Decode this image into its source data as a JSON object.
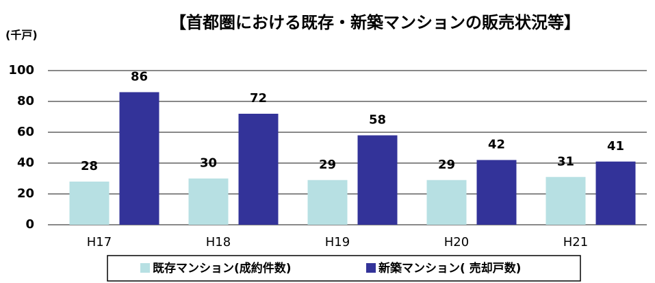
{
  "chart_data": {
    "type": "bar",
    "title": "【首都圏における既存・新築マンションの販売状況等】",
    "y_label": "(千戸)",
    "categories": [
      "H17",
      "H18",
      "H19",
      "H20",
      "H21"
    ],
    "series": [
      {
        "name": "既存マンション(成約件数)",
        "color": "#b7e0e3",
        "values": [
          28,
          30,
          29,
          29,
          31
        ]
      },
      {
        "name": "新築マンション( 売却戸数)",
        "color": "#333399",
        "values": [
          86,
          72,
          58,
          42,
          41
        ]
      }
    ],
    "ylim": [
      0,
      100
    ],
    "yticks": [
      0,
      20,
      40,
      60,
      80,
      100
    ],
    "grid": true
  }
}
